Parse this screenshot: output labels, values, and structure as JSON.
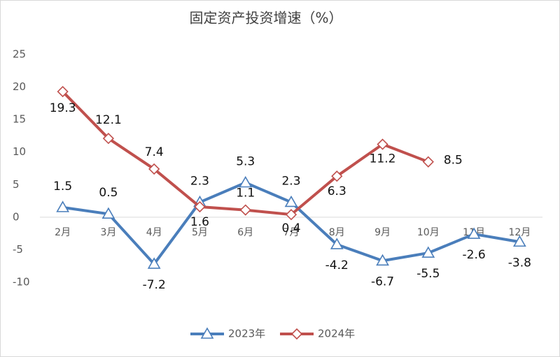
{
  "chart_data": {
    "type": "line",
    "title": "固定资产投资增速（%）",
    "categories": [
      "2月",
      "3月",
      "4月",
      "5月",
      "6月",
      "7月",
      "8月",
      "9月",
      "10月",
      "11月",
      "12月"
    ],
    "series": [
      {
        "name": "2023年",
        "color": "#4a7ebb",
        "marker": "triangle",
        "values": [
          1.5,
          0.5,
          -7.2,
          2.3,
          5.3,
          2.3,
          -4.2,
          -6.7,
          -5.5,
          -2.6,
          -3.8
        ]
      },
      {
        "name": "2024年",
        "color": "#c0504d",
        "marker": "diamond",
        "values": [
          19.3,
          12.1,
          7.4,
          1.6,
          1.1,
          0.4,
          6.3,
          11.2,
          8.5,
          null,
          null
        ]
      }
    ],
    "ylim": [
      -10,
      25
    ],
    "yticks": [
      -10,
      -5,
      0,
      5,
      10,
      15,
      20,
      25
    ],
    "grid": false,
    "legend": "bottom"
  }
}
